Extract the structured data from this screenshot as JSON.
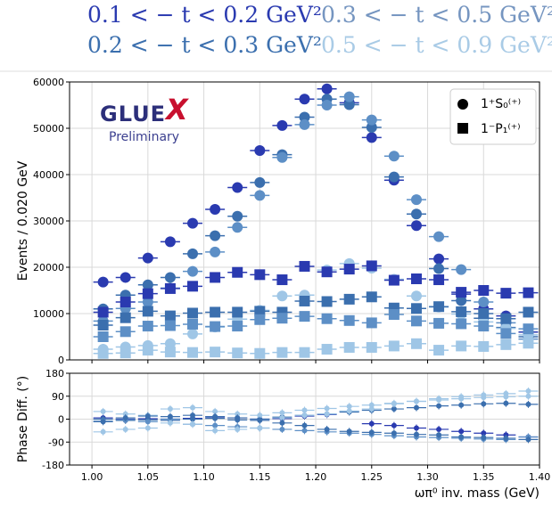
{
  "colors": {
    "t1": "#2a3ab0",
    "t2": "#3b6fae",
    "t3": "#5d8fc6",
    "t4": "#9fc6e6"
  },
  "legend_top": [
    {
      "label": "0.1 < − t < 0.2 GeV²",
      "color": "#2a3ab0"
    },
    {
      "label": "0.3 < − t < 0.5 GeV²",
      "color": "#7595c0"
    },
    {
      "label": "0.2 < − t < 0.3 GeV²",
      "color": "#3b6fae"
    },
    {
      "label": "0.5 < − t < 0.9 GeV²",
      "color": "#a9cbe6"
    }
  ],
  "logo": {
    "text_main": "GLUE",
    "text_x": "X",
    "text_sub": "Preliminary"
  },
  "chart_data": [
    {
      "type": "scatter",
      "ylabel": "Events / 0.020 GeV",
      "xlim": [
        0.98,
        1.4
      ],
      "ylim": [
        0,
        60000
      ],
      "y_ticks": [
        0,
        10000,
        20000,
        30000,
        40000,
        50000,
        60000
      ],
      "grid": true,
      "legend_placement": "top-right",
      "legend": [
        {
          "name": "1⁺S₀⁽⁺⁾",
          "marker": "circle"
        },
        {
          "name": "1⁻P₁⁽⁺⁾",
          "marker": "square"
        }
      ],
      "x": [
        1.01,
        1.03,
        1.05,
        1.07,
        1.09,
        1.11,
        1.13,
        1.15,
        1.17,
        1.19,
        1.21,
        1.23,
        1.25,
        1.27,
        1.29,
        1.31,
        1.33,
        1.35,
        1.37,
        1.39
      ],
      "series": [
        {
          "bin": "t1",
          "marker": "circle",
          "values": [
            16800,
            17800,
            22000,
            25500,
            29500,
            32500,
            37200,
            45200,
            50600,
            56300,
            58500,
            55500,
            48000,
            38800,
            29000,
            21800,
            14200,
            11000,
            9500,
            6000
          ]
        },
        {
          "bin": "t2",
          "marker": "circle",
          "values": [
            11000,
            14000,
            16200,
            17800,
            22900,
            26800,
            31000,
            38300,
            44300,
            52400,
            56300,
            55100,
            50200,
            39500,
            31500,
            19700,
            12800,
            9000,
            7000,
            5000
          ]
        },
        {
          "bin": "t3",
          "marker": "circle",
          "values": [
            8400,
            11100,
            12500,
            15500,
            19100,
            23300,
            28600,
            35500,
            43700,
            50800,
            55000,
            56800,
            51800,
            44000,
            34600,
            26600,
            19500,
            12500,
            8000,
            4500
          ]
        },
        {
          "bin": "t4",
          "marker": "circle",
          "values": [
            2300,
            2800,
            3100,
            3500,
            5600,
            7100,
            8800,
            10700,
            13800,
            14000,
            19400,
            20800,
            19800,
            17400,
            13800,
            11400,
            9900,
            8200,
            6800,
            5400
          ]
        },
        {
          "bin": "t1",
          "marker": "square",
          "values": [
            10300,
            12500,
            14300,
            15400,
            15900,
            17800,
            18900,
            18400,
            17300,
            20200,
            19000,
            19600,
            20300,
            17200,
            17500,
            17300,
            14600,
            15000,
            14400,
            14500
          ]
        },
        {
          "bin": "t2",
          "marker": "square",
          "values": [
            7500,
            9100,
            10500,
            9500,
            10100,
            10300,
            10300,
            10500,
            10300,
            12700,
            12600,
            13100,
            13600,
            11200,
            11100,
            11500,
            10400,
            10000,
            8900,
            10300
          ]
        },
        {
          "bin": "t3",
          "marker": "square",
          "values": [
            5000,
            6100,
            7300,
            7400,
            7700,
            7200,
            7300,
            8700,
            9000,
            9400,
            8900,
            8500,
            8000,
            9800,
            8400,
            7900,
            7800,
            7300,
            5700,
            6700
          ]
        },
        {
          "bin": "t4",
          "marker": "square",
          "values": [
            1400,
            1500,
            2100,
            1700,
            1600,
            1700,
            1500,
            1400,
            1600,
            1600,
            2300,
            2700,
            2700,
            3000,
            3500,
            2100,
            3000,
            2900,
            3300,
            3600
          ]
        }
      ]
    },
    {
      "type": "scatter",
      "xlabel": "ωπ⁰ inv. mass (GeV)",
      "ylabel": "Phase Diff. (°)",
      "xlim": [
        0.98,
        1.4
      ],
      "ylim": [
        -180,
        180
      ],
      "y_ticks": [
        -180,
        -90,
        0,
        90,
        180
      ],
      "x_ticks": [
        "1.00",
        "1.05",
        "1.10",
        "1.15",
        "1.20",
        "1.25",
        "1.30",
        "1.35",
        "1.40"
      ],
      "grid": true,
      "x": [
        1.01,
        1.03,
        1.05,
        1.07,
        1.09,
        1.11,
        1.13,
        1.15,
        1.17,
        1.19,
        1.21,
        1.23,
        1.25,
        1.27,
        1.29,
        1.31,
        1.33,
        1.35,
        1.37,
        1.39
      ],
      "series": [
        {
          "bin": "t1",
          "values": [
            5,
            0,
            2,
            0,
            3,
            8,
            5,
            0,
            2,
            12,
            18,
            30,
            -18,
            -25,
            -35,
            -40,
            -48,
            -55,
            -62,
            -70
          ]
        },
        {
          "bin": "t2",
          "values": [
            0,
            -5,
            -3,
            -5,
            0,
            3,
            -3,
            0,
            8,
            15,
            20,
            28,
            35,
            40,
            45,
            52,
            55,
            60,
            62,
            58
          ]
        },
        {
          "bin": "t3",
          "values": [
            -8,
            -2,
            -10,
            0,
            -20,
            -25,
            -30,
            -35,
            -40,
            -45,
            -50,
            -55,
            -60,
            -65,
            -70,
            -72,
            -75,
            -78,
            -80,
            -70
          ]
        },
        {
          "bin": "t4",
          "values": [
            30,
            20,
            15,
            -15,
            -20,
            -45,
            -40,
            -35,
            5,
            15,
            20,
            32,
            40,
            60,
            70,
            80,
            88,
            95,
            100,
            110
          ]
        },
        {
          "bin": "t4",
          "values": [
            -50,
            -40,
            -35,
            40,
            45,
            30,
            20,
            15,
            25,
            35,
            42,
            50,
            55,
            62,
            70,
            75,
            80,
            85,
            88,
            90
          ]
        },
        {
          "bin": "t2",
          "values": [
            -10,
            5,
            12,
            10,
            15,
            10,
            5,
            -5,
            -15,
            -25,
            -40,
            -48,
            -52,
            -55,
            -60,
            -62,
            -70,
            -72,
            -75,
            -80
          ]
        }
      ]
    }
  ]
}
